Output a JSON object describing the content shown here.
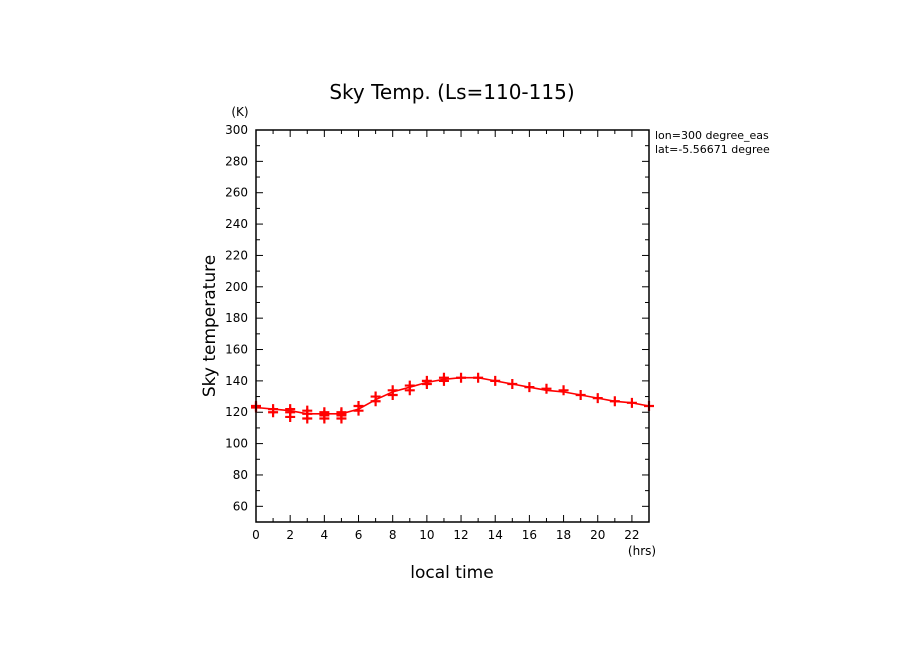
{
  "chart_data": {
    "type": "line",
    "title": "Sky Temp. (Ls=110-115)",
    "xlabel": "local time",
    "ylabel": "Sky temperature",
    "x_unit": "(hrs)",
    "y_unit": "(K)",
    "xlim": [
      0,
      23
    ],
    "ylim": [
      50,
      300
    ],
    "x_ticks": [
      "0",
      "2",
      "4",
      "6",
      "8",
      "10",
      "12",
      "14",
      "16",
      "18",
      "20",
      "22"
    ],
    "y_ticks": [
      "60",
      "80",
      "100",
      "120",
      "140",
      "160",
      "180",
      "200",
      "220",
      "240",
      "260",
      "280",
      "300"
    ],
    "annotations": [
      "lon=300 degree_eas",
      "lat=-5.56671 degree"
    ],
    "colors": {
      "series": "#ff0000",
      "axis": "#000000"
    },
    "grid": false,
    "series": [
      {
        "style": "line",
        "x": [
          0,
          1,
          2,
          3,
          4,
          5,
          6,
          7,
          8,
          9,
          10,
          11,
          12,
          13,
          14,
          15,
          16,
          17,
          18,
          19,
          20,
          21,
          22,
          23
        ],
        "y": [
          123,
          122,
          121,
          119,
          119,
          119,
          122,
          128,
          133,
          136,
          139,
          141,
          142,
          142,
          140,
          138,
          136,
          134,
          133,
          131,
          129,
          127,
          126,
          124
        ]
      },
      {
        "style": "markers",
        "marker": "plus",
        "x": [
          0,
          0,
          1,
          1,
          2,
          2,
          2,
          3,
          3,
          3,
          4,
          4,
          4,
          5,
          5,
          5,
          5,
          6,
          6,
          7,
          7,
          8,
          8,
          9,
          9,
          10,
          10,
          11,
          11,
          12,
          13,
          14,
          15,
          16,
          17,
          18,
          19,
          20,
          21,
          22,
          23
        ],
        "y": [
          123,
          124,
          120,
          122,
          117,
          120,
          122,
          116,
          119,
          121,
          116,
          118,
          120,
          116,
          118,
          119,
          120,
          121,
          124,
          127,
          130,
          131,
          134,
          134,
          137,
          138,
          140,
          140,
          142,
          142,
          142,
          140,
          138,
          136,
          135,
          134,
          131,
          129,
          127,
          126,
          124
        ]
      }
    ]
  }
}
